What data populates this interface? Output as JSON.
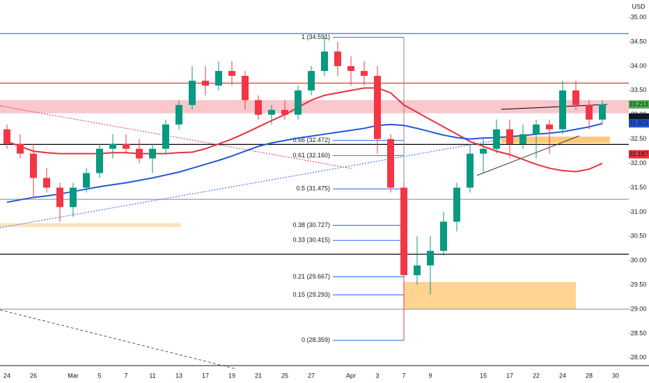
{
  "chart_data": {
    "type": "candlestick",
    "currency": "USD",
    "categories": [
      "24",
      null,
      "26",
      null,
      null,
      "Mar",
      null,
      "5",
      null,
      "7",
      null,
      "11",
      null,
      "13",
      null,
      "17",
      null,
      "19",
      null,
      "21",
      null,
      "25",
      null,
      "27",
      null,
      null,
      "Apr",
      null,
      "3",
      null,
      "7",
      null,
      "9",
      null,
      null,
      null,
      "15",
      null,
      "17",
      null,
      "22",
      null,
      "24",
      null,
      "28",
      null,
      "30"
    ],
    "open": [
      32.7,
      32.4,
      32.2,
      31.7,
      31.5,
      31.1,
      31.5,
      31.8,
      32.3,
      32.4,
      32.3,
      32.1,
      32.3,
      32.8,
      33.2,
      33.7,
      33.6,
      33.9,
      33.8,
      33.3,
      33.0,
      33.1,
      33.0,
      33.5,
      33.9,
      34.3,
      34.0,
      33.9,
      33.8,
      32.5,
      31.5,
      29.7,
      29.9,
      30.2,
      30.8,
      31.5,
      32.2,
      32.3,
      32.7,
      32.4,
      32.6,
      32.8,
      32.7,
      33.5,
      33.2,
      32.9,
      null
    ],
    "high": [
      32.8,
      32.6,
      32.4,
      31.9,
      31.6,
      31.6,
      31.9,
      32.4,
      32.6,
      32.6,
      32.5,
      32.4,
      32.9,
      33.3,
      34.0,
      34.0,
      34.1,
      34.1,
      33.9,
      33.4,
      33.2,
      33.3,
      33.6,
      34.0,
      34.59,
      34.5,
      34.2,
      34.1,
      34.0,
      32.6,
      31.6,
      30.5,
      30.5,
      31.0,
      31.6,
      32.4,
      32.5,
      32.9,
      32.9,
      32.8,
      32.9,
      32.9,
      33.7,
      33.7,
      33.3,
      33.3,
      null
    ],
    "low": [
      32.3,
      32.1,
      31.3,
      31.4,
      30.8,
      30.9,
      31.4,
      31.7,
      32.1,
      32.2,
      32.0,
      31.8,
      32.2,
      32.7,
      33.1,
      33.4,
      33.5,
      33.6,
      33.1,
      32.9,
      32.8,
      32.9,
      32.9,
      33.4,
      33.8,
      33.8,
      33.6,
      33.6,
      32.2,
      31.4,
      28.359,
      29.5,
      29.3,
      30.1,
      30.6,
      31.4,
      31.8,
      32.2,
      32.1,
      32.3,
      32.1,
      32.2,
      32.6,
      33.1,
      32.7,
      32.8,
      null
    ],
    "close": [
      32.4,
      32.2,
      31.7,
      31.5,
      31.1,
      31.5,
      31.8,
      32.3,
      32.4,
      32.3,
      32.1,
      32.3,
      32.8,
      33.2,
      33.7,
      33.6,
      33.9,
      33.8,
      33.3,
      33.0,
      33.1,
      33.0,
      33.5,
      33.9,
      34.3,
      34.0,
      33.9,
      33.8,
      32.5,
      31.5,
      29.7,
      29.9,
      30.2,
      30.8,
      31.5,
      32.2,
      32.3,
      32.7,
      32.4,
      32.6,
      32.8,
      32.7,
      33.5,
      33.2,
      32.9,
      33.213,
      null
    ],
    "up_color": "#089981",
    "down_color": "#f23645",
    "lines": [
      {
        "color": "#e8303a",
        "values": [
          32.45,
          32.35,
          32.25,
          32.22,
          32.2,
          32.2,
          32.2,
          32.2,
          32.22,
          32.22,
          32.2,
          32.2,
          32.2,
          32.22,
          32.23,
          32.3,
          32.4,
          32.5,
          32.62,
          32.75,
          32.88,
          33.0,
          33.15,
          33.3,
          33.4,
          33.45,
          33.5,
          33.55,
          33.55,
          33.45,
          33.2,
          33.05,
          32.9,
          32.75,
          32.6,
          32.45,
          32.35,
          32.25,
          32.18,
          32.08,
          31.98,
          31.9,
          31.85,
          31.83,
          31.88,
          32.0,
          null
        ]
      },
      {
        "color": "#2255d8",
        "values": [
          31.2,
          31.25,
          31.3,
          31.33,
          31.37,
          31.42,
          31.47,
          31.52,
          31.56,
          31.6,
          31.65,
          31.7,
          31.76,
          31.82,
          31.9,
          31.98,
          32.06,
          32.15,
          32.25,
          32.35,
          32.42,
          32.47,
          32.52,
          32.56,
          32.6,
          32.64,
          32.68,
          32.72,
          32.78,
          32.8,
          32.78,
          32.72,
          32.65,
          32.58,
          32.53,
          32.5,
          32.52,
          32.53,
          32.55,
          32.57,
          32.6,
          32.62,
          32.65,
          32.7,
          32.75,
          32.82,
          null
        ]
      }
    ],
    "levels": [
      {
        "value": 34.67,
        "color": "#2962ff"
      },
      {
        "value": 33.65,
        "color": "#e03a3a"
      },
      {
        "value": 32.39,
        "color": "#000000"
      },
      {
        "value": 31.26,
        "color": "#9e9e9e"
      },
      {
        "value": 30.13,
        "color": "#000000"
      },
      {
        "value": 29.0,
        "color": "#9e9e9e"
      }
    ],
    "zones": [
      {
        "from": 33.03,
        "to": 33.3,
        "color": "#f7b4bb"
      },
      {
        "from": 30.69,
        "to": 30.77,
        "color": "#fbd9a6"
      },
      {
        "from": 32.42,
        "to": 32.55,
        "color": "#ffb74d"
      },
      {
        "from": 29.0,
        "to": 29.56,
        "color": "#ffc46b"
      }
    ],
    "fib_levels": [
      {
        "value": 34.591,
        "label": "1 (34.591)"
      },
      {
        "value": 32.472,
        "label": "0.66 (32.472)"
      },
      {
        "value": 32.16,
        "label": "0.61 (32.160)"
      },
      {
        "value": 31.475,
        "label": "0.5 (31.475)"
      },
      {
        "value": 30.727,
        "label": "0.38 (30.727)"
      },
      {
        "value": 30.415,
        "label": "0.33 (30.415)"
      },
      {
        "value": 29.667,
        "label": "0.21 (29.667)"
      },
      {
        "value": 29.293,
        "label": "0.15 (29.293)"
      },
      {
        "value": 28.359,
        "label": "0 (28.359)"
      }
    ],
    "price_tags": [
      {
        "value": 33.213,
        "color": "#4caf50"
      },
      {
        "value": 32.943,
        "color": "#131722"
      },
      {
        "value": 32.823,
        "color": "#2255d8"
      },
      {
        "value": 32.187,
        "color": "#e8303a"
      }
    ],
    "ylim": [
      27.84,
      35.36
    ],
    "yticks": [
      {
        "value": 28,
        "label": "28.00"
      },
      {
        "value": 28.5,
        "label": "28.50"
      },
      {
        "value": 29,
        "label": "29.00"
      },
      {
        "value": 29.5,
        "label": "29.50"
      },
      {
        "value": 30,
        "label": "30.00"
      },
      {
        "value": 30.5,
        "label": "30.50"
      },
      {
        "value": 31,
        "label": "31.00"
      },
      {
        "value": 31.5,
        "label": "31.50"
      },
      {
        "value": 32,
        "label": "32.00"
      },
      {
        "value": 32.5,
        "label": "32.50"
      },
      {
        "value": 33,
        "label": "33.00"
      },
      {
        "value": 33.5,
        "label": "33.50"
      },
      {
        "value": 34,
        "label": "34.00"
      },
      {
        "value": 34.5,
        "label": "34.50"
      },
      {
        "value": 35,
        "label": "35.00"
      }
    ]
  }
}
